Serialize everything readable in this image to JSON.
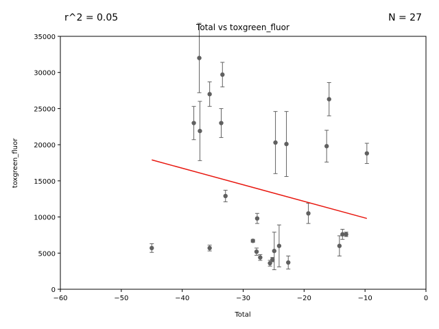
{
  "chart_data": {
    "type": "scatter",
    "title": "Total vs toxgreen_fluor",
    "xlabel": "Total",
    "ylabel": "toxgreen_fluor",
    "stats": {
      "r2_label": "r^2 = 0.05",
      "n_label": "N = 27"
    },
    "xlim": [
      -60,
      0
    ],
    "ylim": [
      0,
      35000
    ],
    "xticks": [
      -60,
      -50,
      -40,
      -30,
      -20,
      -10,
      0
    ],
    "yticks": [
      0,
      5000,
      10000,
      15000,
      20000,
      25000,
      30000,
      35000
    ],
    "grid": false,
    "colors": {
      "points": "#606060",
      "errorbars": "#606060",
      "fit": "#e8170f"
    },
    "points": [
      {
        "x": -45.0,
        "y": 5700,
        "err": 600
      },
      {
        "x": -38.1,
        "y": 23000,
        "err": 2300
      },
      {
        "x": -37.2,
        "y": 32000,
        "err": 4800
      },
      {
        "x": -37.1,
        "y": 21900,
        "err": 4100
      },
      {
        "x": -35.5,
        "y": 27000,
        "err": 1700
      },
      {
        "x": -35.5,
        "y": 5700,
        "err": 400
      },
      {
        "x": -33.6,
        "y": 23000,
        "err": 2000
      },
      {
        "x": -33.4,
        "y": 29700,
        "err": 1700
      },
      {
        "x": -32.9,
        "y": 12900,
        "err": 800
      },
      {
        "x": -28.4,
        "y": 6700,
        "err": 200
      },
      {
        "x": -27.8,
        "y": 5200,
        "err": 500
      },
      {
        "x": -27.7,
        "y": 9800,
        "err": 700
      },
      {
        "x": -27.2,
        "y": 4400,
        "err": 400
      },
      {
        "x": -25.6,
        "y": 3600,
        "err": 400
      },
      {
        "x": -25.2,
        "y": 4100,
        "err": 300
      },
      {
        "x": -24.9,
        "y": 5300,
        "err": 2600
      },
      {
        "x": -24.7,
        "y": 20300,
        "err": 4300
      },
      {
        "x": -24.1,
        "y": 6000,
        "err": 2900
      },
      {
        "x": -22.9,
        "y": 20100,
        "err": 4500
      },
      {
        "x": -22.6,
        "y": 3700,
        "err": 900
      },
      {
        "x": -19.3,
        "y": 10500,
        "err": 1400
      },
      {
        "x": -16.3,
        "y": 19800,
        "err": 2200
      },
      {
        "x": -15.9,
        "y": 26300,
        "err": 2300
      },
      {
        "x": -14.2,
        "y": 6000,
        "err": 1400
      },
      {
        "x": -13.7,
        "y": 7600,
        "err": 700
      },
      {
        "x": -13.1,
        "y": 7600,
        "err": 300
      },
      {
        "x": -9.7,
        "y": 18800,
        "err": 1400
      }
    ],
    "fit_line": {
      "x": [
        -45.0,
        -9.7
      ],
      "y": [
        17900,
        9800
      ]
    }
  }
}
